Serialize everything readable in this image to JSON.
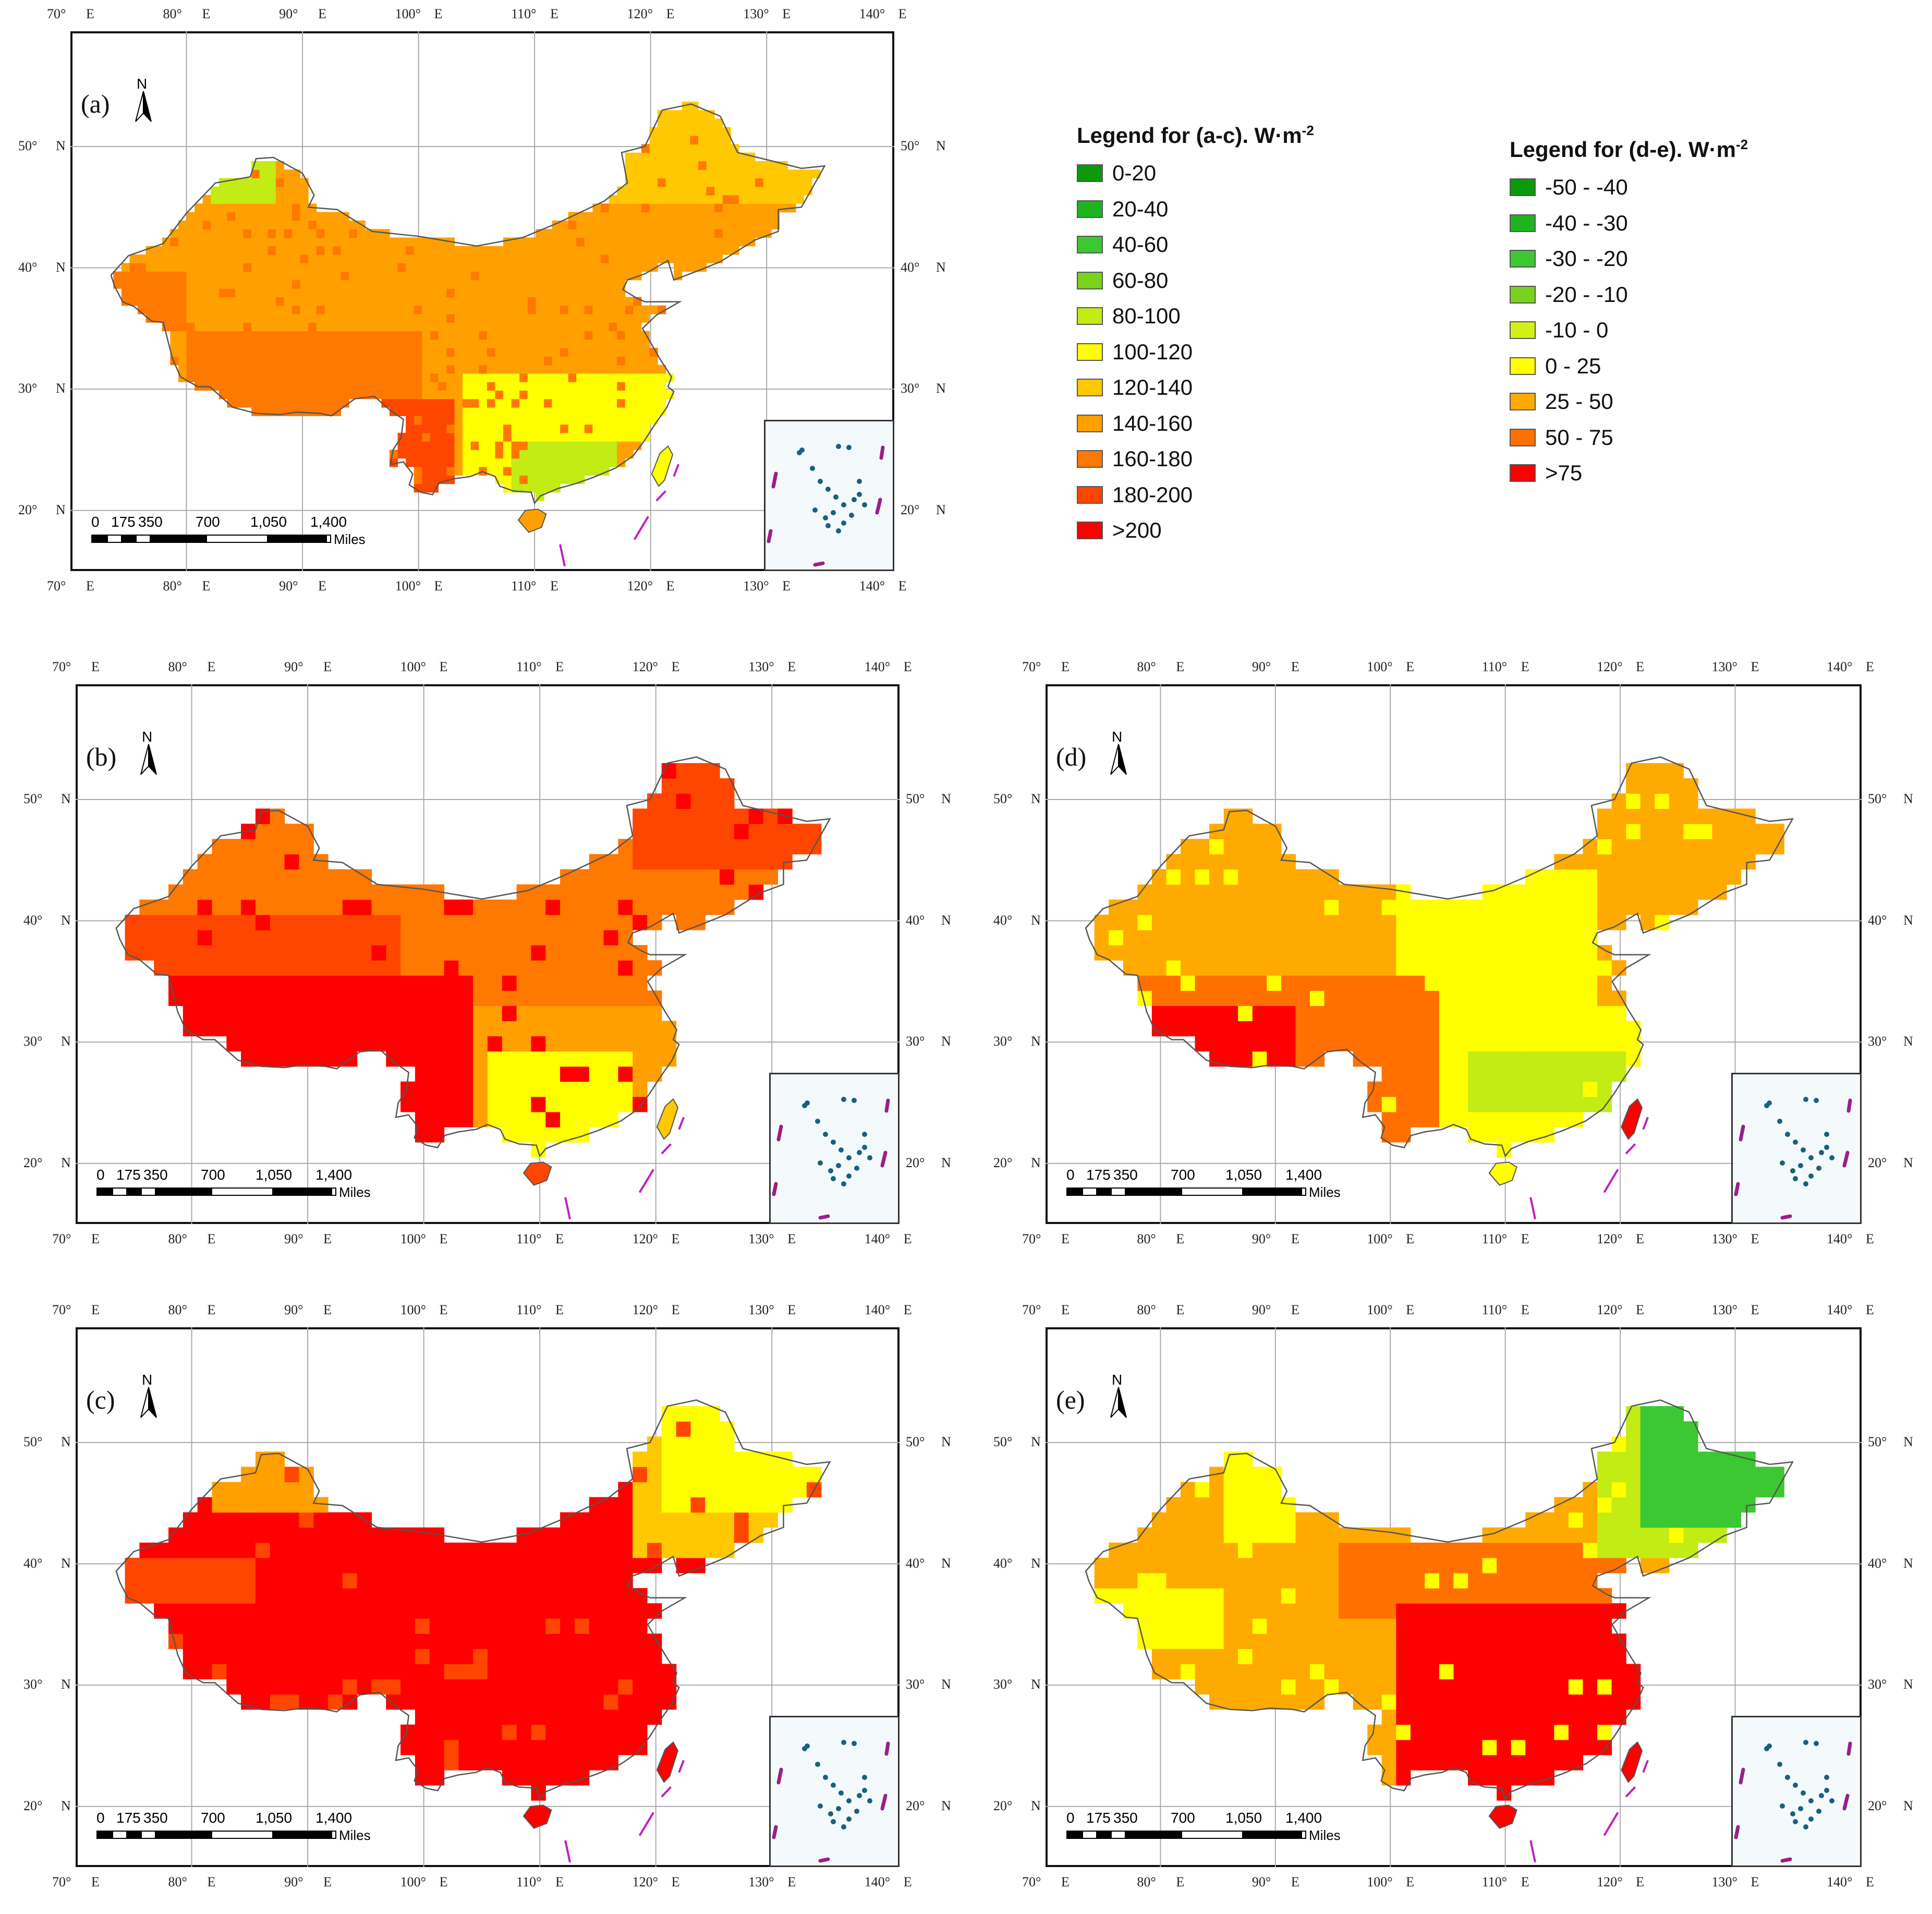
{
  "panels": [
    {
      "id": "a",
      "label": "(a)",
      "north": "N",
      "top_labels": [
        "70°",
        "E",
        "80°",
        "E",
        "90°",
        "E",
        "100°",
        "E",
        "110°",
        "E",
        "120°",
        "E",
        "130°",
        "E",
        "140°"
      ],
      "lat_labels": [
        "50°",
        "N",
        "40°",
        "N",
        "30°",
        "N",
        "20°",
        "N"
      ]
    },
    {
      "id": "b",
      "label": "(b)",
      "north": "N"
    },
    {
      "id": "c",
      "label": "(c)",
      "north": "N"
    },
    {
      "id": "d",
      "label": "(d)",
      "north": "N"
    },
    {
      "id": "e",
      "label": "(e)",
      "north": "N"
    }
  ],
  "lon_ticks": [
    "70°",
    "80°",
    "90°",
    "100°",
    "110°",
    "120°",
    "130°",
    "140°"
  ],
  "lon_suffix": "E",
  "lat_ticks": [
    "50°",
    "40°",
    "30°",
    "20°"
  ],
  "lat_suffix": "N",
  "scale": {
    "labels": [
      "0",
      "175",
      "350",
      "700",
      "1,050",
      "1,400"
    ],
    "unit": "Miles"
  },
  "legend_ac": {
    "title": "Legend for (a-c). W·m",
    "title_sup": "-2",
    "items": [
      {
        "label": "0-20",
        "color": "#0a9a0a"
      },
      {
        "label": "20-40",
        "color": "#1eb41e"
      },
      {
        "label": "40-60",
        "color": "#3cc832"
      },
      {
        "label": "60-80",
        "color": "#78d21e"
      },
      {
        "label": "80-100",
        "color": "#c3eb14"
      },
      {
        "label": "100-120",
        "color": "#ffff00"
      },
      {
        "label": "120-140",
        "color": "#ffc800"
      },
      {
        "label": "140-160",
        "color": "#ffa000"
      },
      {
        "label": "160-180",
        "color": "#ff7800"
      },
      {
        "label": "180-200",
        "color": "#ff4600"
      },
      {
        "label": ">200",
        "color": "#ff0000"
      }
    ]
  },
  "legend_de": {
    "title": "Legend for (d-e). W·m",
    "title_sup": "-2",
    "items": [
      {
        "label": "-50 - -40",
        "color": "#0a9a0a"
      },
      {
        "label": "-40 - -30",
        "color": "#1eb41e"
      },
      {
        "label": "-30 - -20",
        "color": "#3cc832"
      },
      {
        "label": "-20 - -10",
        "color": "#78d21e"
      },
      {
        "label": "-10 - 0",
        "color": "#d2f014"
      },
      {
        "label": "0 - 25",
        "color": "#ffff00"
      },
      {
        "label": "25 - 50",
        "color": "#ffaa00"
      },
      {
        "label": "50 - 75",
        "color": "#ff7000"
      },
      {
        "label": ">75",
        "color": "#ff0000"
      }
    ]
  }
}
